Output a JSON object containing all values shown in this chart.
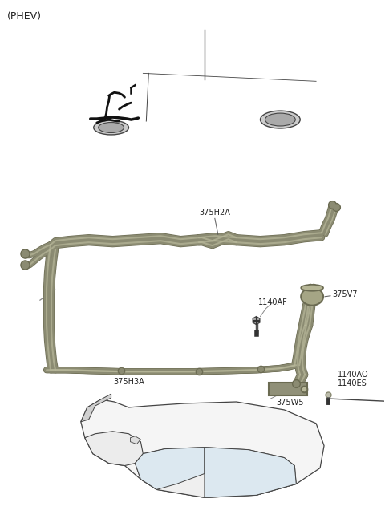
{
  "background_color": "#ffffff",
  "text_color": "#222222",
  "pipe_color": "#8B8B72",
  "pipe_dark": "#6B6B52",
  "pipe_light": "#b8b89a",
  "car_line": "#444444",
  "car_fill": "#f5f5f5",
  "black_line": "#111111",
  "labels": {
    "phev": "(PHEV)",
    "375H2A": "375H2A",
    "375H3A": "375H3A",
    "375V7": "375V7",
    "375W5": "375W5",
    "1140AF": "1140AF",
    "1140AO": "1140AO",
    "1140ES": "1140ES"
  },
  "label_fontsize": 7.0,
  "phev_fontsize": 9.0
}
